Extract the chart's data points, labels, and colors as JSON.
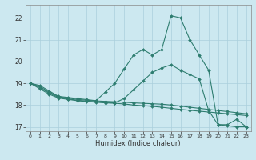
{
  "xlabel": "Humidex (Indice chaleur)",
  "xlim": [
    -0.5,
    23.5
  ],
  "ylim": [
    16.8,
    22.6
  ],
  "yticks": [
    17,
    18,
    19,
    20,
    21,
    22
  ],
  "xticks": [
    0,
    1,
    2,
    3,
    4,
    5,
    6,
    7,
    8,
    9,
    10,
    11,
    12,
    13,
    14,
    15,
    16,
    17,
    18,
    19,
    20,
    21,
    22,
    23
  ],
  "bg_color": "#cce8f0",
  "grid_color": "#aacfdc",
  "line_color": "#2e7d70",
  "lines": [
    {
      "x": [
        0,
        1,
        2,
        3,
        4,
        5,
        6,
        7,
        8,
        9,
        10,
        11,
        12,
        13,
        14,
        15,
        16,
        17,
        18,
        19,
        20,
        21,
        22,
        23
      ],
      "y": [
        19.0,
        18.9,
        18.65,
        18.4,
        18.35,
        18.3,
        18.25,
        18.2,
        18.6,
        19.0,
        19.65,
        20.3,
        20.55,
        20.3,
        20.55,
        22.1,
        22.0,
        21.0,
        20.3,
        19.6,
        17.1,
        17.1,
        17.35,
        17.0
      ]
    },
    {
      "x": [
        0,
        1,
        2,
        3,
        4,
        5,
        6,
        7,
        8,
        9,
        10,
        11,
        12,
        13,
        14,
        15,
        16,
        17,
        18,
        19,
        20,
        21,
        22,
        23
      ],
      "y": [
        19.0,
        18.8,
        18.55,
        18.35,
        18.28,
        18.22,
        18.18,
        18.15,
        18.12,
        18.1,
        18.3,
        18.7,
        19.1,
        19.5,
        19.7,
        19.85,
        19.6,
        19.4,
        19.2,
        17.75,
        17.1,
        17.05,
        17.0,
        17.0
      ]
    },
    {
      "x": [
        0,
        1,
        2,
        3,
        4,
        5,
        6,
        7,
        8,
        9,
        10,
        11,
        12,
        13,
        14,
        15,
        16,
        17,
        18,
        19,
        20,
        21,
        22,
        23
      ],
      "y": [
        19.0,
        18.85,
        18.6,
        18.38,
        18.32,
        18.26,
        18.22,
        18.19,
        18.17,
        18.15,
        18.13,
        18.1,
        18.08,
        18.06,
        18.04,
        18.0,
        17.95,
        17.9,
        17.85,
        17.8,
        17.75,
        17.7,
        17.65,
        17.6
      ]
    },
    {
      "x": [
        0,
        1,
        2,
        3,
        4,
        5,
        6,
        7,
        8,
        9,
        10,
        11,
        12,
        13,
        14,
        15,
        16,
        17,
        18,
        19,
        20,
        21,
        22,
        23
      ],
      "y": [
        19.0,
        18.75,
        18.5,
        18.32,
        18.26,
        18.2,
        18.16,
        18.13,
        18.1,
        18.08,
        18.05,
        18.0,
        17.97,
        17.94,
        17.9,
        17.85,
        17.8,
        17.76,
        17.72,
        17.68,
        17.64,
        17.6,
        17.56,
        17.52
      ]
    }
  ]
}
